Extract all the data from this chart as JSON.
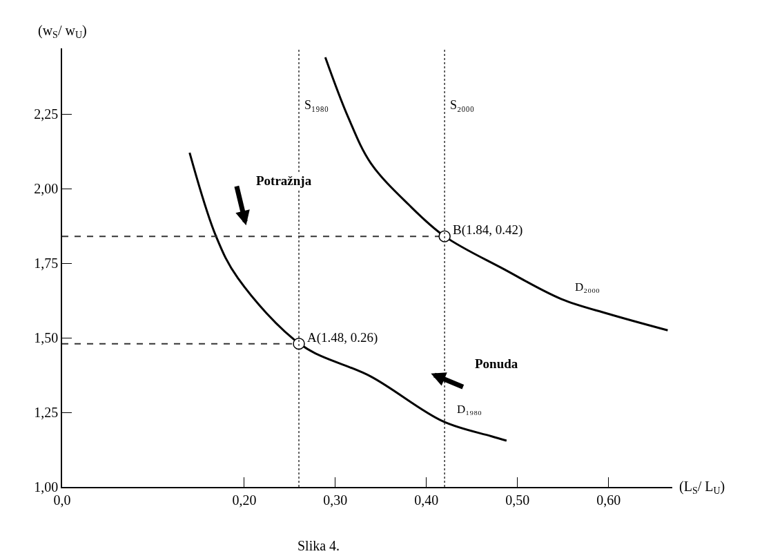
{
  "chart_data": {
    "type": "line",
    "xlabel": "(L$_{S}$/ L$_{U}$)",
    "ylabel": "(w$_{S}$/ w$_{U}$)",
    "xlim": [
      0,
      0.67
    ],
    "ylim": [
      1.0,
      2.47
    ],
    "xticks": [
      {
        "value": 0,
        "label": "0,0"
      },
      {
        "value": 0.2,
        "label": "0,20"
      },
      {
        "value": 0.3,
        "label": "0,30"
      },
      {
        "value": 0.4,
        "label": "0,40"
      },
      {
        "value": 0.5,
        "label": "0,50"
      },
      {
        "value": 0.6,
        "label": "0,60"
      }
    ],
    "yticks": [
      {
        "value": 1.0,
        "label": "1,00"
      },
      {
        "value": 1.25,
        "label": "1,25"
      },
      {
        "value": 1.5,
        "label": "1,50"
      },
      {
        "value": 1.75,
        "label": "1,75"
      },
      {
        "value": 2.0,
        "label": "2,00"
      },
      {
        "value": 2.25,
        "label": "2,25"
      }
    ],
    "series": [
      {
        "name": "D₁₉₈₀",
        "color": "#000000",
        "line_style": "solid",
        "x": [
          0.14,
          0.169,
          0.193,
          0.263,
          0.339,
          0.418,
          0.471,
          0.488
        ],
        "values": [
          2.12,
          1.84,
          1.7,
          1.475,
          1.37,
          1.22,
          1.17,
          1.155
        ]
      },
      {
        "name": "D₂₀₀₀",
        "color": "#000000",
        "line_style": "solid",
        "x": [
          0.289,
          0.314,
          0.339,
          0.381,
          0.42,
          0.485,
          0.548,
          0.6,
          0.665
        ],
        "values": [
          2.44,
          2.24,
          2.085,
          1.945,
          1.84,
          1.73,
          1.63,
          1.58,
          1.525
        ]
      },
      {
        "color": "#333333",
        "line_style": "dashed",
        "x": [
          0,
          0.26
        ],
        "values": [
          1.48,
          1.48
        ]
      },
      {
        "color": "#333333",
        "line_style": "dashed",
        "x": [
          0,
          0.42
        ],
        "values": [
          1.84,
          1.84
        ]
      },
      {
        "type": "scatter",
        "color": "#000000",
        "marker": "circle",
        "x": [
          0.26,
          0.42
        ],
        "values": [
          1.48,
          1.84
        ]
      }
    ],
    "ref_lines": [
      {
        "axis": "x",
        "value": 0.26,
        "label": "S₁₉₈₀",
        "line_style": "dotted",
        "color": "#333333"
      },
      {
        "axis": "x",
        "value": 0.42,
        "label": "S₂₀₀₀",
        "line_style": "dotted",
        "color": "#333333"
      }
    ],
    "annotations": [
      {
        "text": "A(1.48, 0.26)",
        "x": 0.26,
        "y": 1.48
      },
      {
        "text": "B(1.84, 0.42)",
        "x": 0.42,
        "y": 1.84
      },
      "Potražnja",
      "Ponuda",
      "Slika 4."
    ]
  }
}
